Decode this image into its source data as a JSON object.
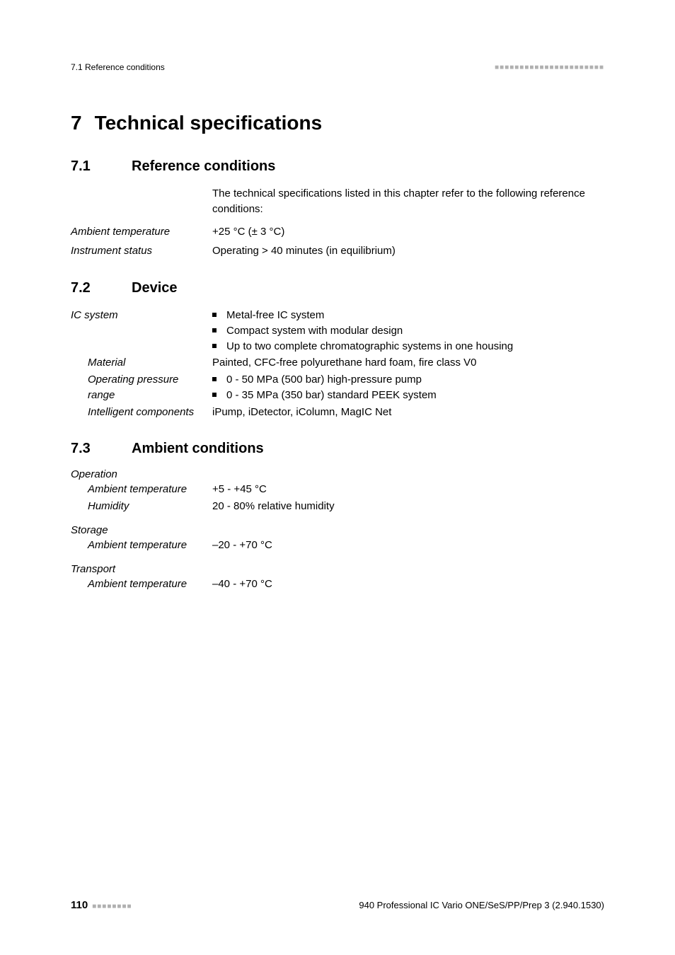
{
  "header": {
    "left": "7.1 Reference conditions",
    "dashes": "■■■■■■■■■■■■■■■■■■■■■■"
  },
  "chapter": {
    "number": "7",
    "title": "Technical specifications"
  },
  "sections": {
    "s1": {
      "number": "7.1",
      "title": "Reference conditions",
      "intro": "The technical specifications listed in this chapter refer to the following reference conditions:",
      "rows": {
        "ambient": {
          "label": "Ambient temperature",
          "value": "+25 °C (± 3 °C)"
        },
        "status": {
          "label": "Instrument status",
          "value": "Operating > 40 minutes (in equilibrium)"
        }
      }
    },
    "s2": {
      "number": "7.2",
      "title": "Device",
      "rows": {
        "ic": {
          "label": "IC system",
          "bullets": [
            "Metal-free IC system",
            "Compact system with modular design",
            "Up to two complete chromatographic systems in one housing"
          ]
        },
        "material": {
          "label": "Material",
          "value": "Painted, CFC-free polyurethane hard foam, fire class V0"
        },
        "pressure": {
          "label": "Operating pressure range",
          "bullets": [
            "0 - 50 MPa (500 bar) high-pressure pump",
            "0 - 35 MPa (350 bar) standard PEEK system"
          ]
        },
        "intelligent": {
          "label": "Intelligent components",
          "value": "iPump, iDetector, iColumn, MagIC Net"
        }
      }
    },
    "s3": {
      "number": "7.3",
      "title": "Ambient conditions",
      "groups": {
        "operation": {
          "label": "Operation",
          "rows": {
            "temp": {
              "label": "Ambient temperature",
              "value": "+5 - +45 °C"
            },
            "humidity": {
              "label": "Humidity",
              "value": "20 - 80% relative humidity"
            }
          }
        },
        "storage": {
          "label": "Storage",
          "rows": {
            "temp": {
              "label": "Ambient temperature",
              "value": "–20 - +70 °C"
            }
          }
        },
        "transport": {
          "label": "Transport",
          "rows": {
            "temp": {
              "label": "Ambient temperature",
              "value": "–40 - +70 °C"
            }
          }
        }
      }
    }
  },
  "footer": {
    "page": "110",
    "dashes": "■■■■■■■■",
    "docref": "940 Professional IC Vario ONE/SeS/PP/Prep 3 (2.940.1530)"
  }
}
